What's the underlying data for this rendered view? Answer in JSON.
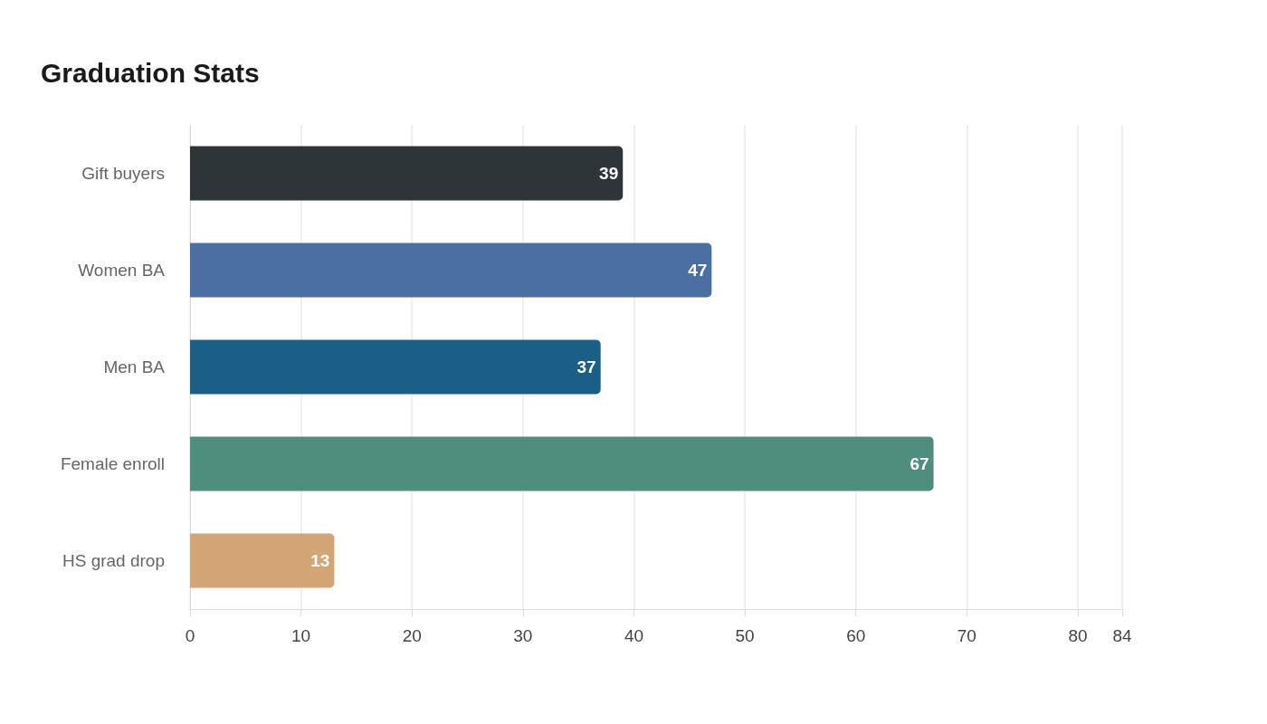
{
  "chart_data": {
    "type": "bar",
    "title": "Graduation Stats",
    "orientation": "horizontal",
    "categories": [
      "Gift buyers",
      "Women BA",
      "Men BA",
      "Female enroll",
      "HS grad drop"
    ],
    "values": [
      39,
      47,
      37,
      67,
      13
    ],
    "colors": [
      "#2e3538",
      "#4a6fa3",
      "#195f86",
      "#4f8d7c",
      "#d4a575"
    ],
    "xlim": [
      0,
      84
    ],
    "xticks": [
      0,
      10,
      20,
      30,
      40,
      50,
      60,
      70,
      80,
      84
    ],
    "grid": "x",
    "data_labels": true
  }
}
